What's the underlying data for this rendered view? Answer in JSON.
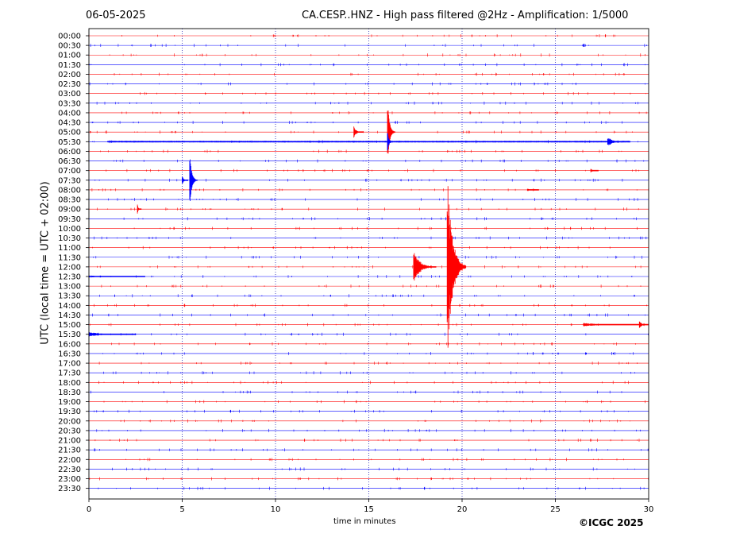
{
  "header": {
    "date": "06-05-2025",
    "title": "CA.CESP..HNZ - High pass filtered @2Hz - Amplification: 1/5000"
  },
  "footer": {
    "copyright": "©ICGC 2025"
  },
  "colors": {
    "odd_trace": "#ff0000",
    "even_trace": "#0000ff",
    "axis": "#000000",
    "grid": "#0000aa"
  },
  "chart_data": {
    "type": "seismogram",
    "xlabel": "time in minutes",
    "ylabel": "UTC (local time = UTC + 02:00)",
    "xlim": [
      0,
      30
    ],
    "x_ticks": [
      "0",
      "5",
      "10",
      "15",
      "20",
      "25",
      "30"
    ],
    "x_tick_values": [
      0,
      5,
      10,
      15,
      20,
      25,
      30
    ],
    "vertical_grid_minutes": [
      5,
      10,
      15,
      20,
      25
    ],
    "rows": [
      "00:00",
      "00:30",
      "01:00",
      "01:30",
      "02:00",
      "02:30",
      "03:00",
      "03:30",
      "04:00",
      "04:30",
      "05:00",
      "05:30",
      "06:00",
      "06:30",
      "07:00",
      "07:30",
      "08:00",
      "08:30",
      "09:00",
      "09:30",
      "10:00",
      "10:30",
      "11:00",
      "11:30",
      "12:00",
      "12:30",
      "13:00",
      "13:30",
      "14:00",
      "14:30",
      "15:00",
      "15:30",
      "16:00",
      "16:30",
      "17:00",
      "17:30",
      "18:00",
      "18:30",
      "19:00",
      "19:30",
      "20:00",
      "20:30",
      "21:00",
      "21:30",
      "22:00",
      "22:30",
      "23:00",
      "23:30"
    ],
    "row_colors": [
      "red",
      "blue"
    ],
    "events": [
      {
        "row": "05:00",
        "minute": 14.2,
        "amplitude": 0.6,
        "duration": 0.5
      },
      {
        "row": "05:00",
        "minute": 16.0,
        "amplitude": 4.0,
        "duration": 0.4
      },
      {
        "row": "05:30",
        "minute": 1.0,
        "amplitude": 0.15,
        "duration": 28.0
      },
      {
        "row": "05:30",
        "minute": 16.0,
        "amplitude": 1.2,
        "duration": 0.3
      },
      {
        "row": "05:30",
        "minute": 27.8,
        "amplitude": 0.6,
        "duration": 0.8
      },
      {
        "row": "07:00",
        "minute": 26.9,
        "amplitude": 0.2,
        "duration": 0.4
      },
      {
        "row": "07:30",
        "minute": 5.0,
        "amplitude": 0.5,
        "duration": 0.3
      },
      {
        "row": "07:30",
        "minute": 5.4,
        "amplitude": 3.0,
        "duration": 0.4
      },
      {
        "row": "08:00",
        "minute": 23.5,
        "amplitude": 0.15,
        "duration": 0.6
      },
      {
        "row": "09:00",
        "minute": 2.6,
        "amplitude": 0.5,
        "duration": 0.2
      },
      {
        "row": "12:00",
        "minute": 17.4,
        "amplitude": 1.8,
        "duration": 1.2
      },
      {
        "row": "12:00",
        "minute": 19.2,
        "amplitude": 10.0,
        "duration": 1.0
      },
      {
        "row": "12:30",
        "minute": 0.0,
        "amplitude": 0.12,
        "duration": 3.0
      },
      {
        "row": "15:00",
        "minute": 26.5,
        "amplitude": 0.2,
        "duration": 3.0
      },
      {
        "row": "15:00",
        "minute": 29.5,
        "amplitude": 0.4,
        "duration": 0.5
      },
      {
        "row": "15:30",
        "minute": 0.0,
        "amplitude": 0.25,
        "duration": 2.5
      }
    ]
  }
}
